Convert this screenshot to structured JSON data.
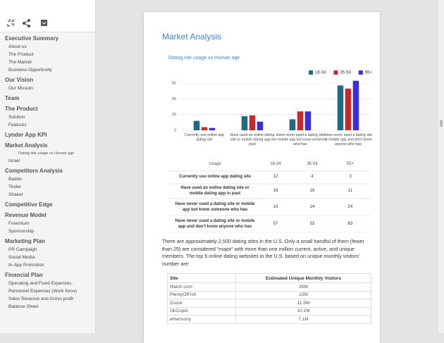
{
  "sidebar": {
    "sections": [
      {
        "title": "Executive Summary",
        "items": [
          "About us",
          "The Product",
          "The Market",
          "Business Opportunity"
        ]
      },
      {
        "title": "Our Vision",
        "items": [
          "Our Mission:"
        ]
      },
      {
        "title": "Team"
      },
      {
        "title": "The Product",
        "items": [
          "Solution",
          "Features"
        ]
      },
      {
        "title": "Lynder App KPI"
      },
      {
        "title": "Market Analysis",
        "subitems": [
          "Dating site usage vs Human age"
        ],
        "items": [
          "Israel"
        ]
      },
      {
        "title": "Competitors Analysis",
        "items": [
          "Badoo",
          "Tinder",
          "Shaker"
        ]
      },
      {
        "title": "Competitive Edge"
      },
      {
        "title": "Revenue Model",
        "items": [
          "Freemium",
          "Sponsorship"
        ]
      },
      {
        "title": "Marketing Plan",
        "items": [
          "PR Campaign",
          "Social Media",
          "In-App Promotion"
        ]
      },
      {
        "title": "Financial Plan",
        "items": [
          "Operating and Fixed Expenses :",
          "Personnel Expenses (Work force)",
          "Sales Revenue and Gross profit",
          "Balance Sheet"
        ]
      }
    ]
  },
  "document": {
    "heading": "Market Analysis",
    "usage_table": {
      "header": "Usage"
    },
    "paragraph": "There are approximately 2,500 dating sites in the U.S. Only a small handful of them (fewer than 25) are considered “major” with more than one million current, active, and unique members. The top 5 online dating websites in the U.S. based on unique monthly visitors' number are:",
    "sites_table": {
      "header": [
        "Site",
        "Estimated Unique Monthly Visitors"
      ],
      "rows": [
        [
          "Match.com",
          "35M"
        ],
        [
          "PlentyOfFish",
          "23M"
        ],
        [
          "Zoosk",
          "11.5M"
        ],
        [
          "OkCupid",
          "10.1M"
        ],
        [
          "eHarmony",
          "7.1M"
        ]
      ]
    }
  },
  "chart_data": {
    "type": "bar",
    "title": "Dating site usage vs Human age",
    "categories": [
      "Currently use online app dating site",
      "Have used an online dating site or mobile dating app in past",
      "Have never used a dating site or mobile app but know someone who has",
      "Have never used a dating site or mobile app and don't know anyone who has"
    ],
    "series": [
      {
        "name": "18-34",
        "color": "#216a86",
        "values": [
          12,
          18,
          14,
          57
        ]
      },
      {
        "name": "35-54",
        "color": "#c62a2a",
        "values": [
          4,
          19,
          24,
          53
        ]
      },
      {
        "name": "55+",
        "color": "#3a2fd8",
        "values": [
          3,
          11,
          24,
          63
        ]
      }
    ],
    "ylim": [
      0,
      70
    ],
    "yticks": [
      0,
      20,
      40,
      60
    ],
    "grid": true,
    "legend": "top-right"
  }
}
